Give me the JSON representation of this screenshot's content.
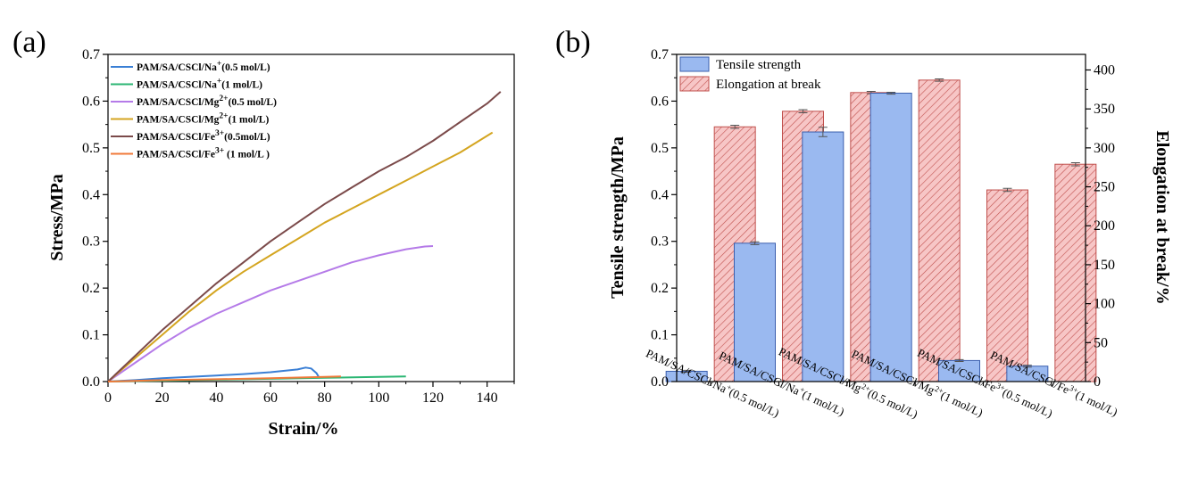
{
  "panels": {
    "a": "(a)",
    "b": "(b)"
  },
  "chart_data": [
    {
      "type": "line",
      "xlabel": "Strain/%",
      "ylabel": "Stress/MPa",
      "xlim": [
        0,
        150
      ],
      "ylim": [
        0,
        0.7
      ],
      "xticks": [
        "0",
        "20",
        "40",
        "60",
        "80",
        "100",
        "120",
        "140"
      ],
      "yticks": [
        "0.0",
        "0.1",
        "0.2",
        "0.3",
        "0.4",
        "0.5",
        "0.6",
        "0.7"
      ],
      "grid": false,
      "legend_position": "top-left",
      "series": [
        {
          "name": "PAM/SA/CSCl/Na",
          "ion_sup": "+",
          "conc": "(0.5 mol/L)",
          "color": "#3a7fd5",
          "x": [
            0,
            10,
            20,
            30,
            40,
            50,
            60,
            70,
            73,
            75,
            77,
            78
          ],
          "y": [
            0,
            0.003,
            0.007,
            0.01,
            0.013,
            0.016,
            0.02,
            0.026,
            0.03,
            0.028,
            0.018,
            0.008
          ]
        },
        {
          "name": "PAM/SA/CSCl/Na",
          "ion_sup": "+",
          "conc": "(1 mol/L)",
          "color": "#2bb673",
          "x": [
            0,
            20,
            40,
            60,
            80,
            100,
            110
          ],
          "y": [
            0,
            0.002,
            0.004,
            0.006,
            0.008,
            0.01,
            0.011
          ]
        },
        {
          "name": "PAM/SA/CSCl/Mg",
          "ion_sup": "2+",
          "conc": "(0.5 mol/L)",
          "color": "#b57be8",
          "x": [
            0,
            10,
            20,
            30,
            40,
            50,
            60,
            70,
            80,
            90,
            100,
            110,
            117,
            120
          ],
          "y": [
            0,
            0.04,
            0.08,
            0.115,
            0.145,
            0.17,
            0.195,
            0.215,
            0.235,
            0.255,
            0.27,
            0.283,
            0.289,
            0.29
          ]
        },
        {
          "name": "PAM/SA/CSCl/Mg",
          "ion_sup": "2+",
          "conc": "(1 mol/L)",
          "color": "#d4a520",
          "x": [
            0,
            10,
            20,
            30,
            40,
            50,
            60,
            70,
            80,
            90,
            100,
            110,
            120,
            130,
            142
          ],
          "y": [
            0,
            0.05,
            0.1,
            0.15,
            0.195,
            0.235,
            0.27,
            0.305,
            0.34,
            0.37,
            0.4,
            0.43,
            0.46,
            0.49,
            0.533
          ]
        },
        {
          "name": "PAM/SA/CSCl/Fe",
          "ion_sup": "3+",
          "conc": "(0.5mol/L)",
          "color": "#7b4a4a",
          "x": [
            0,
            10,
            20,
            30,
            40,
            50,
            60,
            70,
            80,
            90,
            100,
            110,
            120,
            130,
            140,
            145
          ],
          "y": [
            0,
            0.055,
            0.11,
            0.16,
            0.21,
            0.255,
            0.3,
            0.34,
            0.38,
            0.415,
            0.45,
            0.48,
            0.515,
            0.555,
            0.595,
            0.62
          ]
        },
        {
          "name": "PAM/SA/CSCl/Fe",
          "ion_sup": "3+",
          "conc": " (1 mol/L )",
          "color": "#f07a3a",
          "x": [
            0,
            20,
            40,
            60,
            80,
            86
          ],
          "y": [
            0,
            0.003,
            0.005,
            0.007,
            0.01,
            0.011
          ]
        }
      ]
    },
    {
      "type": "bar",
      "ylabel_left": "Tensile strength/MPa",
      "ylabel_right": "Elongation at break/%",
      "ylim_left": [
        0,
        0.7
      ],
      "ylim_right": [
        0,
        420
      ],
      "yticks_left": [
        "0.0",
        "0.1",
        "0.2",
        "0.3",
        "0.4",
        "0.5",
        "0.6",
        "0.7"
      ],
      "yticks_right": [
        "0",
        "50",
        "100",
        "150",
        "200",
        "250",
        "300",
        "350",
        "400"
      ],
      "grid": false,
      "legend_position": "top-left",
      "categories": [
        {
          "pre": "PAM/SA/CSCl/Na",
          "sup": "+",
          "post": "(0.5 mol/L)"
        },
        {
          "pre": "PAM/SA/CSCl/Na",
          "sup": "+",
          "post": "(1 mol/L)"
        },
        {
          "pre": "PAM/SA/CSCl/Mg",
          "sup": "2+",
          "post": "(0.5 mol/L)"
        },
        {
          "pre": "PAM/SA/CSCl/Mg",
          "sup": "2+",
          "post": "(1 mol/L)"
        },
        {
          "pre": "PAM/SA/CSCl/Fe",
          "sup": "3+",
          "post": "(0.5 mol/L)"
        },
        {
          "pre": "PAM/SA/CSCl/Fe",
          "sup": "3+",
          "post": "(1 mol/L)"
        }
      ],
      "series": [
        {
          "name": "Tensile strength",
          "axis": "left",
          "color": "#9ab9f0",
          "edge": "#3b5fae",
          "values": [
            0.022,
            0.296,
            0.534,
            0.617,
            0.045,
            0.033
          ],
          "errors": [
            0.002,
            0.003,
            0.01,
            0.002,
            0.002,
            0.002
          ]
        },
        {
          "name": "Elongation at break",
          "axis": "right",
          "color": "#f7c6c6",
          "edge": "#c0504d",
          "values": [
            327,
            347,
            371,
            387,
            246,
            279
          ],
          "errors": [
            2,
            2,
            1.5,
            1.5,
            2,
            2
          ]
        }
      ]
    }
  ]
}
